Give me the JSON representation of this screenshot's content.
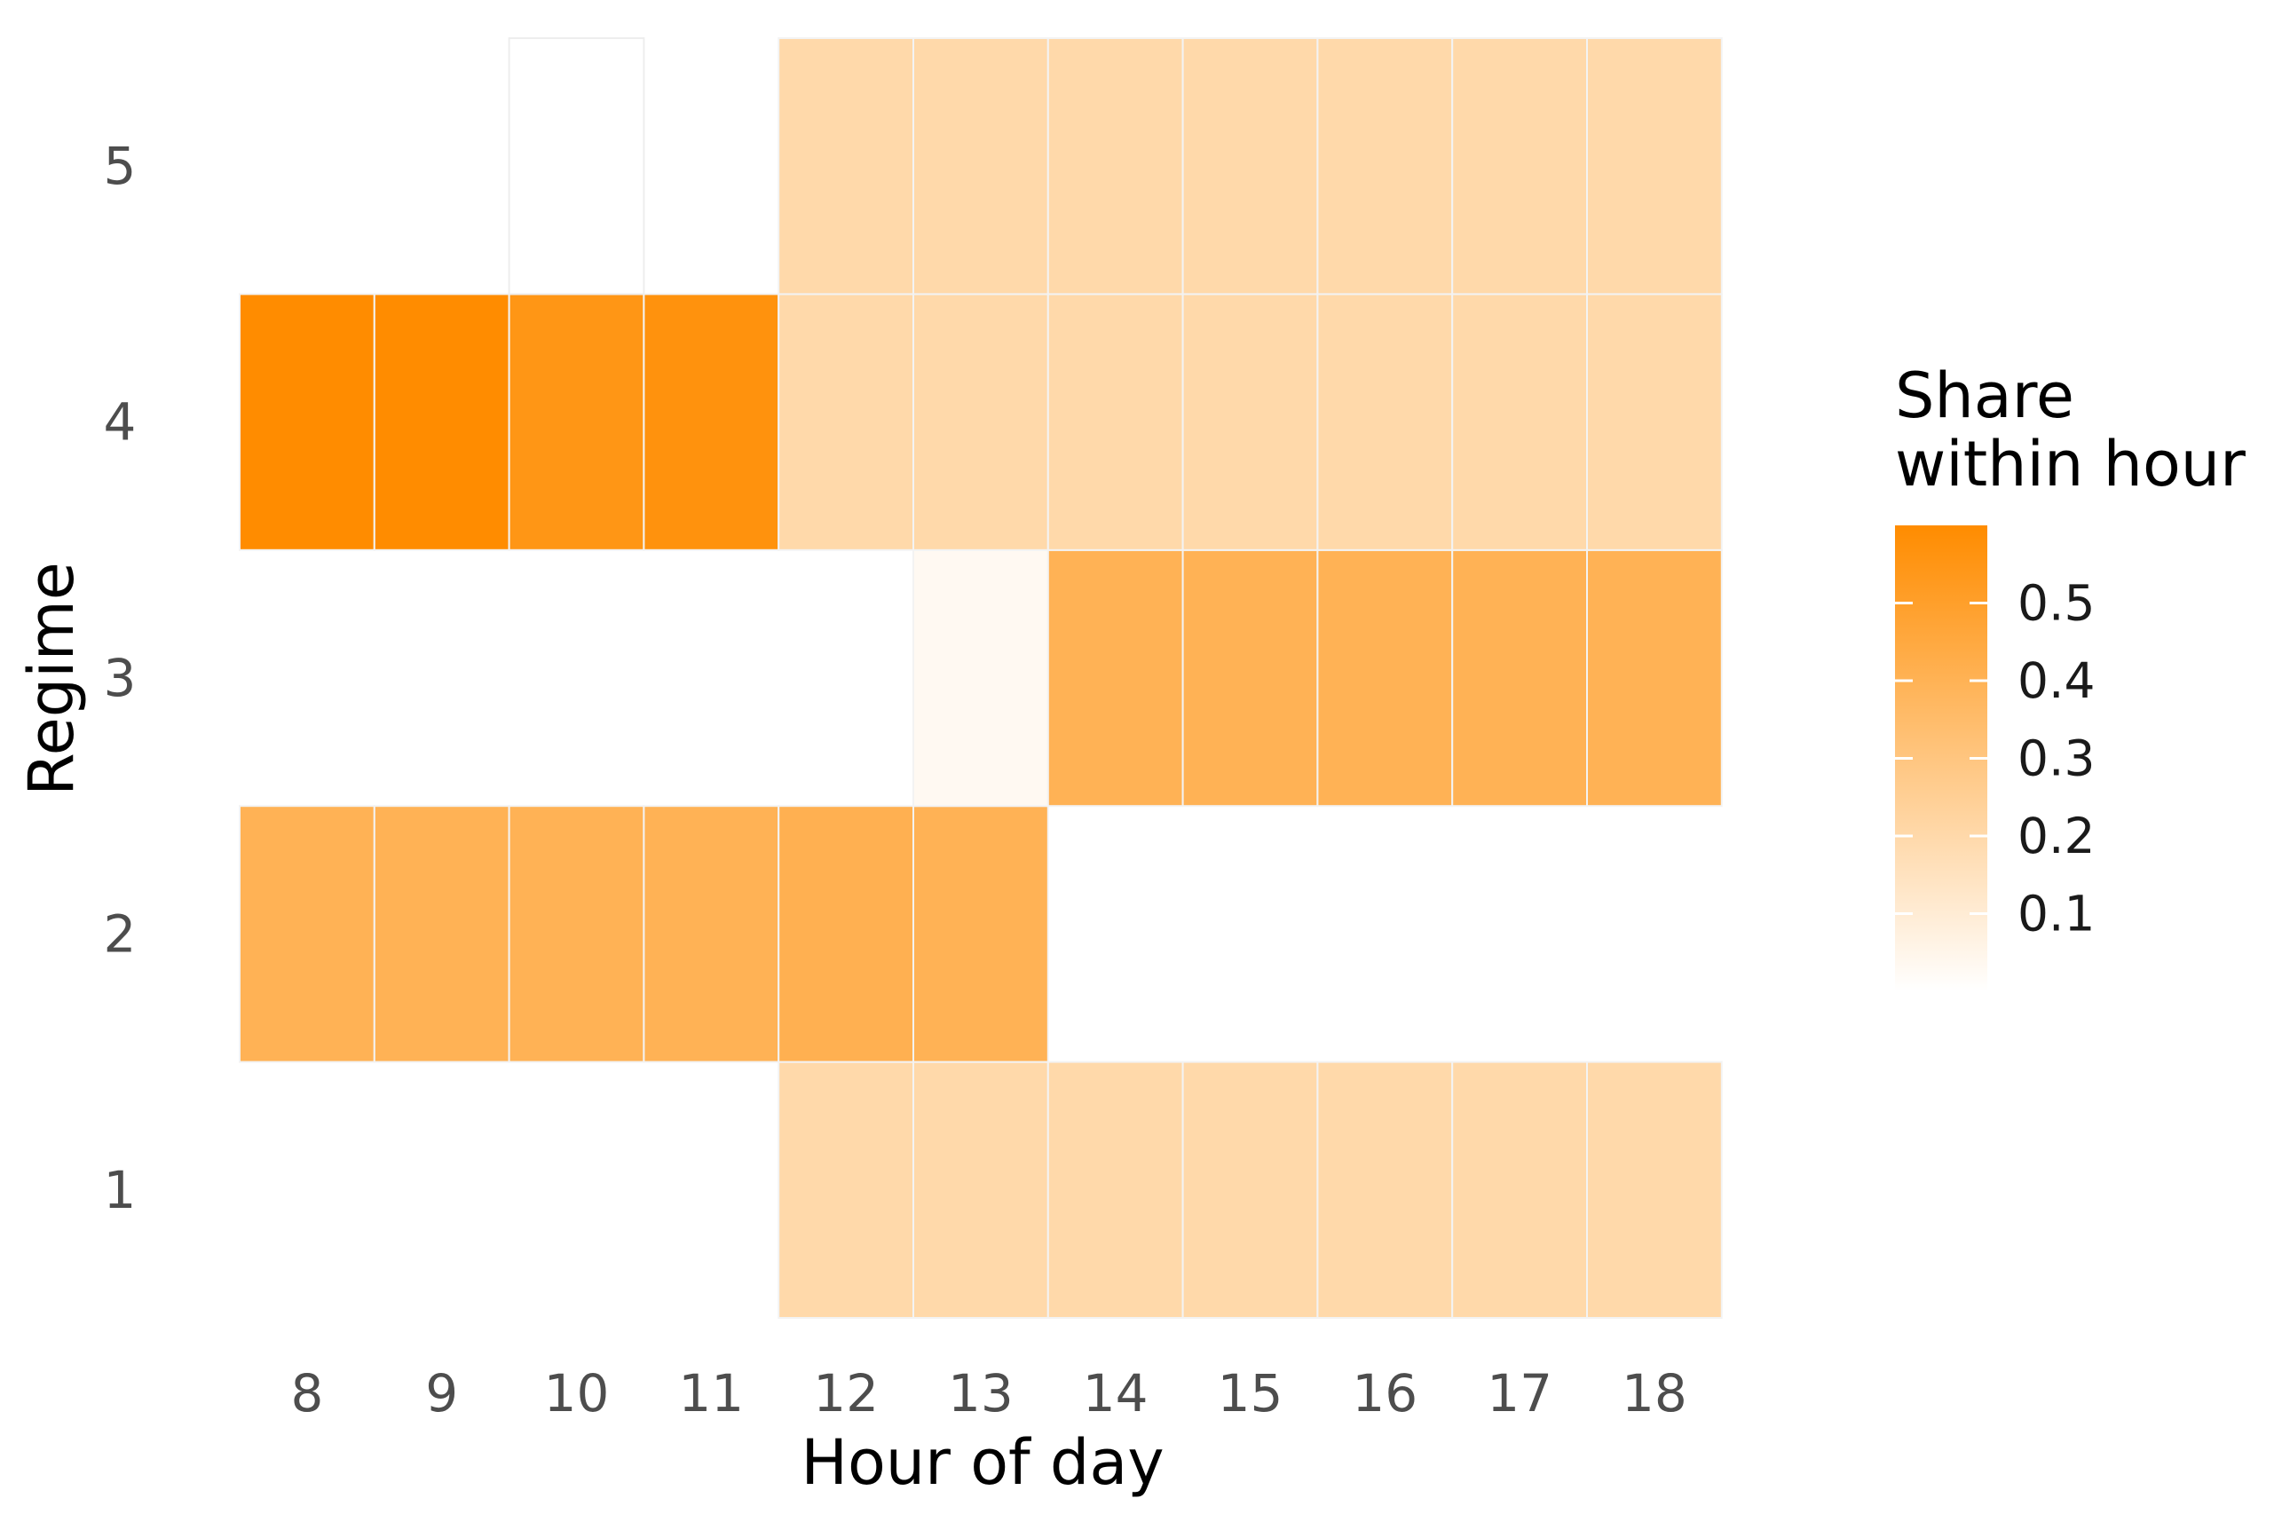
{
  "chart_data": {
    "type": "heatmap",
    "xlabel": "Hour of day",
    "ylabel": "Regime",
    "x": [
      8,
      9,
      10,
      11,
      12,
      13,
      14,
      15,
      16,
      17,
      18
    ],
    "y": [
      1,
      2,
      3,
      4,
      5
    ],
    "values": {
      "1": [
        null,
        null,
        null,
        null,
        0.2,
        0.2,
        0.2,
        0.2,
        0.2,
        0.2,
        0.2
      ],
      "2": [
        0.4,
        0.4,
        0.4,
        0.4,
        0.41,
        0.4,
        null,
        null,
        null,
        null,
        null
      ],
      "3": [
        null,
        null,
        null,
        null,
        null,
        0.03,
        0.4,
        0.4,
        0.4,
        0.4,
        0.4
      ],
      "4": [
        0.6,
        0.6,
        0.55,
        0.57,
        0.2,
        0.2,
        0.2,
        0.2,
        0.2,
        0.2,
        0.2
      ],
      "5": [
        null,
        null,
        0.0,
        null,
        0.2,
        0.2,
        0.2,
        0.2,
        0.2,
        0.2,
        0.2
      ]
    },
    "color_scale": {
      "low_color": "#ffffff",
      "high_color": "#ff8c00",
      "range": [
        0,
        0.6
      ]
    },
    "legend": {
      "title_lines": [
        "Share",
        "within hour"
      ],
      "ticks": [
        0.1,
        0.2,
        0.3,
        0.4,
        0.5
      ],
      "placement": "right"
    },
    "grid": false
  }
}
